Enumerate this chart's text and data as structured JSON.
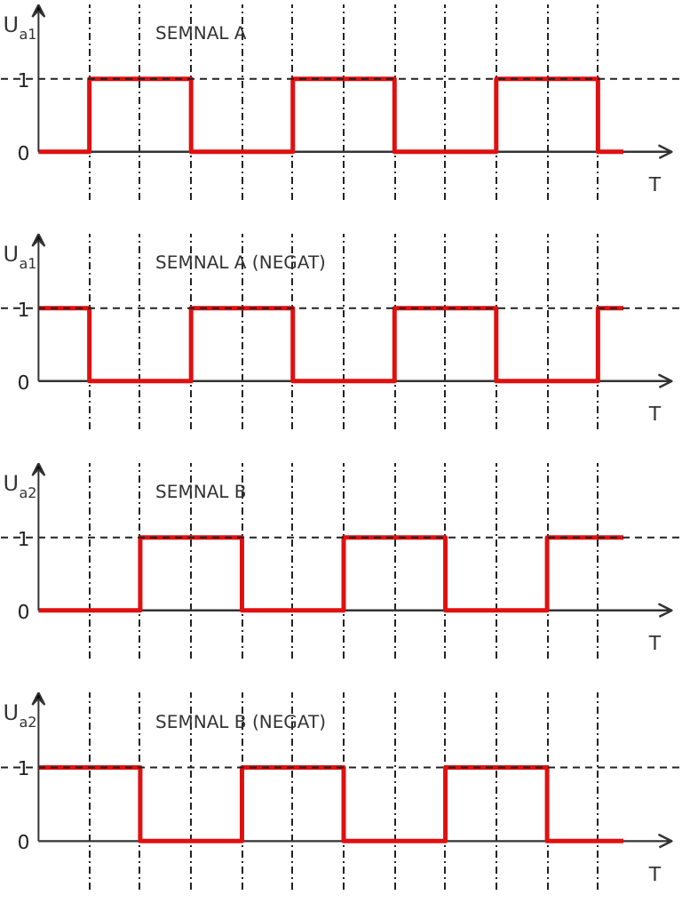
{
  "chart_data": [
    {
      "type": "step",
      "title": "SEMNAL A",
      "ylabel": "U$_{a1}$",
      "xlabel": "T",
      "categories": [
        null,
        null,
        null,
        null,
        null,
        null,
        null,
        null,
        null,
        null,
        null,
        null,
        null,
        null,
        null,
        null,
        null,
        null,
        null,
        null,
        null,
        null,
        null,
        null
      ],
      "tick_labels": "y",
      "grid": "x",
      "ylim": [
        -0.66,
        2.02
      ],
      "yticks": [
        0,
        1
      ],
      "ref_lines": [
        {
          "axis": "y",
          "value": 1
        }
      ],
      "series": [
        {
          "color": "#e01010",
          "values": [
            0,
            0,
            1,
            1,
            1,
            1,
            0,
            0,
            0,
            0,
            1,
            1,
            1,
            1,
            0,
            0,
            0,
            0,
            1,
            1,
            1,
            1,
            0,
            0
          ]
        }
      ]
    },
    {
      "type": "step",
      "title": "SEMNAL  A (NEGAT)",
      "ylabel": "U$_{a1}$",
      "xlabel": "T",
      "categories": [
        null,
        null,
        null,
        null,
        null,
        null,
        null,
        null,
        null,
        null,
        null,
        null,
        null,
        null,
        null,
        null,
        null,
        null,
        null,
        null,
        null,
        null,
        null,
        null
      ],
      "tick_labels": "y",
      "grid": "x",
      "ylim": [
        -0.66,
        2.02
      ],
      "yticks": [
        0,
        1
      ],
      "ref_lines": [
        {
          "axis": "y",
          "value": 1
        }
      ],
      "series": [
        {
          "color": "#e01010",
          "values": [
            1,
            1,
            0,
            0,
            0,
            0,
            1,
            1,
            1,
            1,
            0,
            0,
            0,
            0,
            1,
            1,
            1,
            1,
            0,
            0,
            0,
            0,
            1,
            1
          ]
        }
      ]
    },
    {
      "type": "step",
      "title": "SEMNAL  B",
      "ylabel": "U$_{a2}$",
      "xlabel": "T",
      "categories": [
        null,
        null,
        null,
        null,
        null,
        null,
        null,
        null,
        null,
        null,
        null,
        null,
        null,
        null,
        null,
        null,
        null,
        null,
        null,
        null,
        null,
        null,
        null,
        null
      ],
      "tick_labels": "y",
      "grid": "x",
      "ylim": [
        -0.66,
        2.02
      ],
      "yticks": [
        0,
        1
      ],
      "ref_lines": [
        {
          "axis": "y",
          "value": 1
        }
      ],
      "series": [
        {
          "color": "#e01010",
          "values": [
            0,
            0,
            0,
            0,
            1,
            1,
            1,
            1,
            0,
            0,
            0,
            0,
            1,
            1,
            1,
            1,
            0,
            0,
            0,
            0,
            1,
            1,
            1,
            1
          ]
        }
      ]
    },
    {
      "type": "step",
      "title": "SEMNAL B  (NEGAT)",
      "ylabel": "U$_{a2}$",
      "xlabel": "T",
      "categories": [
        null,
        null,
        null,
        null,
        null,
        null,
        null,
        null,
        null,
        null,
        null,
        null,
        null,
        null,
        null,
        null,
        null,
        null,
        null,
        null,
        null,
        null,
        null,
        null
      ],
      "tick_labels": "y",
      "grid": "x",
      "ylim": [
        -0.66,
        2.02
      ],
      "yticks": [
        0,
        1
      ],
      "ref_lines": [
        {
          "axis": "y",
          "value": 1
        }
      ],
      "series": [
        {
          "color": "#e01010",
          "values": [
            1,
            1,
            1,
            1,
            0,
            0,
            0,
            0,
            1,
            1,
            1,
            1,
            0,
            0,
            0,
            0,
            1,
            1,
            1,
            1,
            0,
            0,
            0,
            0
          ]
        }
      ]
    }
  ]
}
